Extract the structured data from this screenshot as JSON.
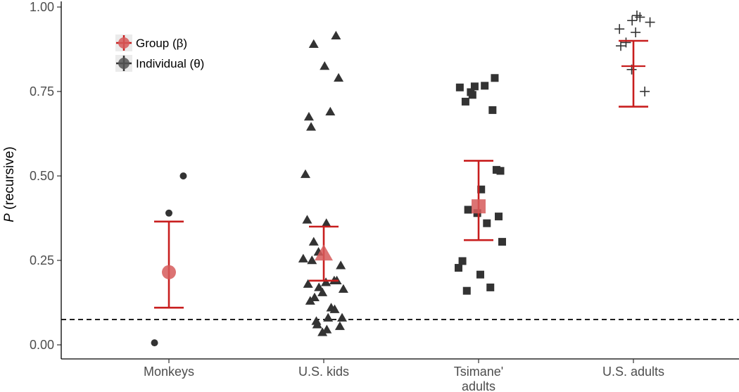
{
  "chart_data": {
    "type": "scatter",
    "title": "",
    "xlabel": "",
    "ylabel_italic": "P",
    "ylabel_rest": " (recursive)",
    "ylim": [
      0,
      1
    ],
    "y_ticks": [
      0,
      0.25,
      0.5,
      0.75,
      1.0
    ],
    "y_tick_labels": [
      "0.00",
      "0.25",
      "0.50",
      "0.75",
      "1.00"
    ],
    "grid": false,
    "legend_position": "top-left",
    "legend": [
      {
        "label": "Group (β)",
        "color": "#c81e1e"
      },
      {
        "label": "Individual (θ)",
        "color": "#333333"
      }
    ],
    "reference_line": {
      "y": 0.075,
      "style": "dashed"
    },
    "colors": {
      "group": "#c81e1e",
      "group_fill": "#d65a5a",
      "individual": "#333333"
    },
    "categories": [
      {
        "name": "Monkeys",
        "name_lines": [
          "Monkeys"
        ],
        "shape": "circle",
        "group_mean": 0.215,
        "group_ci": [
          0.11,
          0.365
        ],
        "individuals": [
          {
            "offset": 0.0,
            "y": 0.39
          },
          {
            "offset": 0.33,
            "y": 0.5
          },
          {
            "offset": -0.33,
            "y": 0.006
          }
        ]
      },
      {
        "name": "U.S. kids",
        "name_lines": [
          "U.S. kids"
        ],
        "shape": "triangle",
        "group_mean": 0.27,
        "group_ci": [
          0.19,
          0.35
        ],
        "individuals": [
          {
            "offset": 0.28,
            "y": 0.915
          },
          {
            "offset": -0.23,
            "y": 0.89
          },
          {
            "offset": 0.02,
            "y": 0.825
          },
          {
            "offset": 0.34,
            "y": 0.79
          },
          {
            "offset": 0.15,
            "y": 0.69
          },
          {
            "offset": -0.34,
            "y": 0.675
          },
          {
            "offset": -0.29,
            "y": 0.645
          },
          {
            "offset": -0.42,
            "y": 0.505
          },
          {
            "offset": -0.38,
            "y": 0.37
          },
          {
            "offset": 0.06,
            "y": 0.36
          },
          {
            "offset": -0.23,
            "y": 0.305
          },
          {
            "offset": -0.12,
            "y": 0.275
          },
          {
            "offset": -0.47,
            "y": 0.255
          },
          {
            "offset": -0.27,
            "y": 0.25
          },
          {
            "offset": 0.39,
            "y": 0.235
          },
          {
            "offset": 0.24,
            "y": 0.19
          },
          {
            "offset": 0.3,
            "y": 0.19
          },
          {
            "offset": 0.05,
            "y": 0.185
          },
          {
            "offset": -0.36,
            "y": 0.18
          },
          {
            "offset": -0.11,
            "y": 0.17
          },
          {
            "offset": 0.45,
            "y": 0.165
          },
          {
            "offset": -0.03,
            "y": 0.155
          },
          {
            "offset": -0.21,
            "y": 0.14
          },
          {
            "offset": -0.31,
            "y": 0.13
          },
          {
            "offset": 0.17,
            "y": 0.11
          },
          {
            "offset": 0.25,
            "y": 0.105
          },
          {
            "offset": 0.42,
            "y": 0.08
          },
          {
            "offset": 0.1,
            "y": 0.08
          },
          {
            "offset": -0.17,
            "y": 0.07
          },
          {
            "offset": -0.15,
            "y": 0.06
          },
          {
            "offset": 0.37,
            "y": 0.055
          },
          {
            "offset": 0.07,
            "y": 0.045
          },
          {
            "offset": -0.03,
            "y": 0.037
          }
        ]
      },
      {
        "name": "Tsimane' adults",
        "name_lines": [
          "Tsimane'",
          "adults"
        ],
        "shape": "square",
        "group_mean": 0.41,
        "group_ci": [
          0.31,
          0.545
        ],
        "individuals": [
          {
            "offset": 0.37,
            "y": 0.79
          },
          {
            "offset": 0.14,
            "y": 0.767
          },
          {
            "offset": -0.43,
            "y": 0.762
          },
          {
            "offset": -0.09,
            "y": 0.765
          },
          {
            "offset": -0.18,
            "y": 0.748
          },
          {
            "offset": -0.14,
            "y": 0.74
          },
          {
            "offset": -0.3,
            "y": 0.72
          },
          {
            "offset": 0.32,
            "y": 0.695
          },
          {
            "offset": 0.41,
            "y": 0.518
          },
          {
            "offset": 0.5,
            "y": 0.515
          },
          {
            "offset": 0.06,
            "y": 0.46
          },
          {
            "offset": -0.24,
            "y": 0.4
          },
          {
            "offset": -0.03,
            "y": 0.39
          },
          {
            "offset": 0.46,
            "y": 0.38
          },
          {
            "offset": 0.19,
            "y": 0.36
          },
          {
            "offset": 0.54,
            "y": 0.305
          },
          {
            "offset": -0.37,
            "y": 0.248
          },
          {
            "offset": -0.46,
            "y": 0.228
          },
          {
            "offset": 0.04,
            "y": 0.208
          },
          {
            "offset": 0.27,
            "y": 0.17
          },
          {
            "offset": -0.27,
            "y": 0.16
          }
        ]
      },
      {
        "name": "U.S. adults",
        "name_lines": [
          "U.S. adults"
        ],
        "shape": "cross",
        "group_mean": 0.825,
        "group_ci": [
          0.705,
          0.9
        ],
        "individuals": [
          {
            "offset": 0.08,
            "y": 0.975
          },
          {
            "offset": 0.15,
            "y": 0.97
          },
          {
            "offset": -0.03,
            "y": 0.96
          },
          {
            "offset": 0.38,
            "y": 0.955
          },
          {
            "offset": -0.32,
            "y": 0.935
          },
          {
            "offset": 0.05,
            "y": 0.925
          },
          {
            "offset": -0.17,
            "y": 0.895
          },
          {
            "offset": -0.29,
            "y": 0.885
          },
          {
            "offset": -0.04,
            "y": 0.815
          },
          {
            "offset": 0.26,
            "y": 0.75
          }
        ]
      }
    ]
  }
}
